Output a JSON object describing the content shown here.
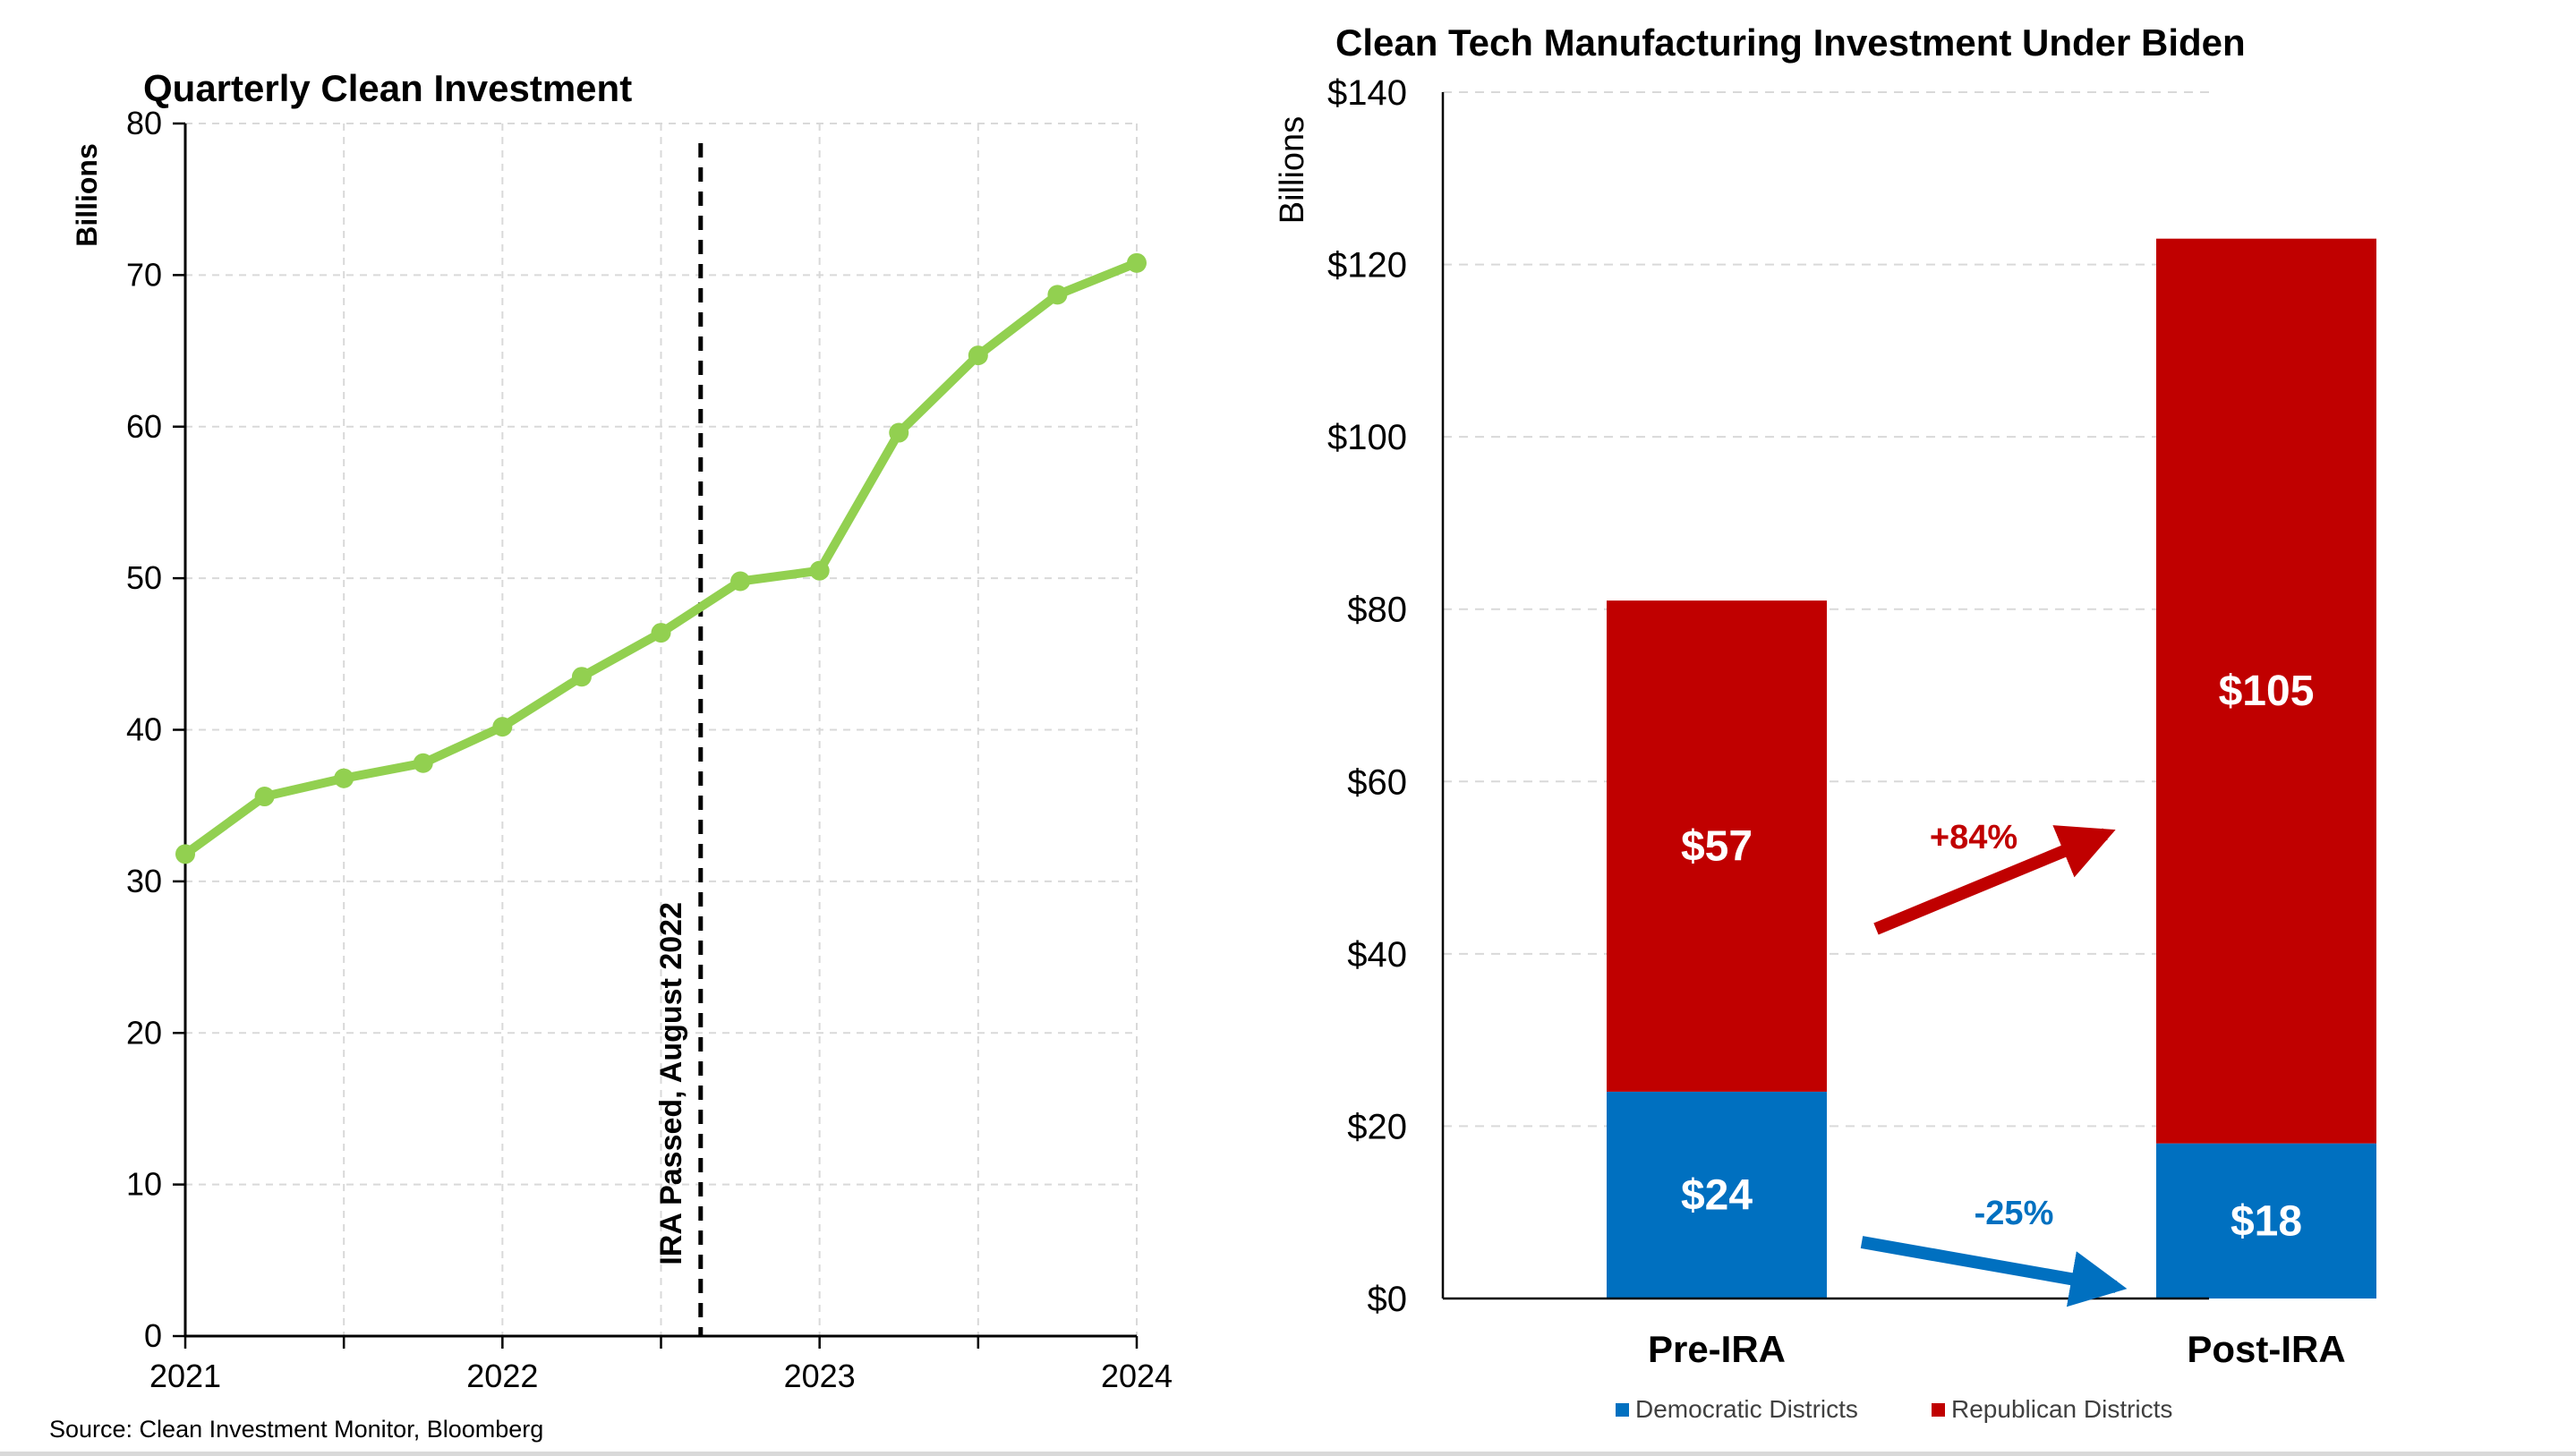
{
  "source": "Source: Clean Investment Monitor,  Bloomberg",
  "chart_data": [
    {
      "type": "line",
      "title": "Quarterly Clean Investment",
      "ylabel": "Billions",
      "xlabel": "",
      "x_ticks": [
        "2021",
        "2022",
        "2023",
        "2024"
      ],
      "xlim": [
        2021,
        2024
      ],
      "ylim": [
        0,
        80
      ],
      "y_ticks": [
        0,
        10,
        20,
        30,
        40,
        50,
        60,
        70,
        80
      ],
      "grid": "horizontal and vertical, light dashed",
      "legend": "none",
      "series": [
        {
          "x": [
            2021.0,
            2021.25,
            2021.5,
            2021.75,
            2022.0,
            2022.25,
            2022.5,
            2022.75,
            2023.0,
            2023.25,
            2023.5,
            2023.75,
            2024.0
          ],
          "values": [
            31.8,
            35.6,
            36.8,
            37.8,
            40.2,
            43.5,
            46.4,
            49.8,
            50.5,
            59.6,
            64.7,
            68.7,
            70.8
          ],
          "color": "#92d050"
        }
      ],
      "annotations": [
        {
          "type": "vertical-dashed-line",
          "x": 2022.625,
          "text": "IRA Passed, August 2022",
          "color": "#000000"
        }
      ]
    },
    {
      "type": "bar",
      "stacked": true,
      "title": "Clean Tech Manufacturing Investment Under Biden",
      "ylabel": "Billions",
      "xlabel": "",
      "categories": [
        "Pre-IRA",
        "Post-IRA"
      ],
      "ylim": [
        0,
        140
      ],
      "y_ticks": [
        "$0",
        "$20",
        "$40",
        "$60",
        "$80",
        "$100",
        "$120",
        "$140"
      ],
      "grid": "horizontal, light dashed",
      "legend": "bottom",
      "series": [
        {
          "name": "Democratic Districts",
          "values": [
            24,
            18
          ],
          "labels": [
            "$24",
            "$18"
          ],
          "color": "#0070c0"
        },
        {
          "name": "Republican Districts",
          "values": [
            57,
            105
          ],
          "labels": [
            "$57",
            "$105"
          ],
          "color": "#c00000"
        }
      ],
      "annotations": [
        {
          "text": "+84%",
          "color": "#c00000"
        },
        {
          "text": "-25%",
          "color": "#0070c0"
        }
      ]
    }
  ]
}
